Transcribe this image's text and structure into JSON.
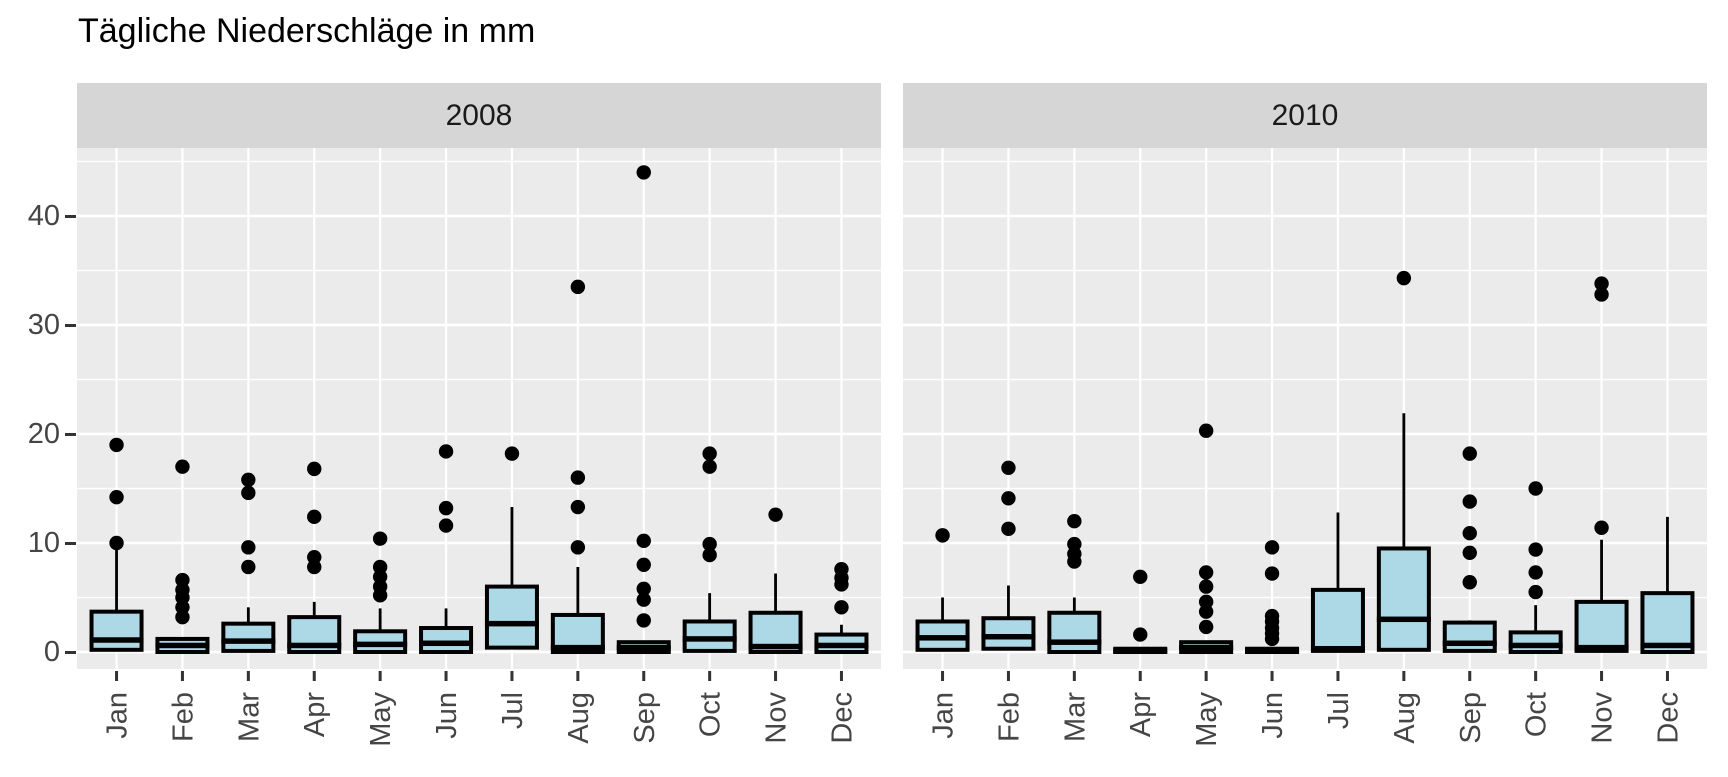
{
  "chart_data": {
    "type": "boxplot",
    "title": "Tägliche Niederschläge in mm",
    "units": "mm",
    "categories": [
      "Jan",
      "Feb",
      "Mar",
      "Apr",
      "May",
      "Jun",
      "Jul",
      "Aug",
      "Sep",
      "Oct",
      "Nov",
      "Dec"
    ],
    "yticks": [
      0,
      10,
      20,
      30,
      40
    ],
    "minor_gridline_step": 5,
    "ylim": [
      -1.6,
      46.3
    ],
    "grid": "on",
    "legend": "none",
    "facets": [
      {
        "label": "2008",
        "boxes": [
          {
            "month": "Jan",
            "q1": 0.2,
            "median": 1.1,
            "q3": 3.7,
            "whisker_high": 9.5,
            "outliers": [
              10.0,
              14.2,
              19.0
            ]
          },
          {
            "month": "Feb",
            "q1": 0.0,
            "median": 0.6,
            "q3": 1.2,
            "whisker_high": 1.2,
            "outliers": [
              3.2,
              4.1,
              5.0,
              5.7,
              6.6,
              17.0
            ]
          },
          {
            "month": "Mar",
            "q1": 0.1,
            "median": 1.0,
            "q3": 2.6,
            "whisker_high": 4.1,
            "outliers": [
              7.8,
              9.6,
              14.6,
              15.8
            ]
          },
          {
            "month": "Apr",
            "q1": 0.0,
            "median": 0.6,
            "q3": 3.2,
            "whisker_high": 4.6,
            "outliers": [
              7.8,
              8.7,
              12.4,
              16.8
            ]
          },
          {
            "month": "May",
            "q1": 0.0,
            "median": 0.7,
            "q3": 1.9,
            "whisker_high": 4.0,
            "outliers": [
              5.2,
              6.0,
              6.9,
              7.8,
              10.4
            ]
          },
          {
            "month": "Jun",
            "q1": 0.0,
            "median": 0.8,
            "q3": 2.2,
            "whisker_high": 4.0,
            "outliers": [
              11.6,
              13.2,
              18.4
            ]
          },
          {
            "month": "Jul",
            "q1": 0.4,
            "median": 2.6,
            "q3": 6.0,
            "whisker_high": 13.3,
            "outliers": [
              18.2
            ]
          },
          {
            "month": "Aug",
            "q1": 0.0,
            "median": 0.4,
            "q3": 3.4,
            "whisker_high": 7.8,
            "outliers": [
              9.6,
              13.3,
              16.0,
              33.5
            ]
          },
          {
            "month": "Sep",
            "q1": 0.0,
            "median": 0.4,
            "q3": 0.9,
            "whisker_high": 0.9,
            "outliers": [
              2.9,
              4.8,
              5.8,
              8.0,
              10.2,
              44.0
            ]
          },
          {
            "month": "Oct",
            "q1": 0.1,
            "median": 1.2,
            "q3": 2.8,
            "whisker_high": 5.4,
            "outliers": [
              8.9,
              9.9,
              17.0,
              18.2
            ]
          },
          {
            "month": "Nov",
            "q1": 0.0,
            "median": 0.5,
            "q3": 3.6,
            "whisker_high": 7.2,
            "outliers": [
              12.6
            ]
          },
          {
            "month": "Dec",
            "q1": 0.0,
            "median": 0.6,
            "q3": 1.6,
            "whisker_high": 2.5,
            "outliers": [
              4.1,
              6.2,
              6.8,
              7.6
            ]
          }
        ]
      },
      {
        "label": "2010",
        "boxes": [
          {
            "month": "Jan",
            "q1": 0.2,
            "median": 1.3,
            "q3": 2.8,
            "whisker_high": 5.0,
            "outliers": [
              10.7
            ]
          },
          {
            "month": "Feb",
            "q1": 0.3,
            "median": 1.4,
            "q3": 3.1,
            "whisker_high": 6.1,
            "outliers": [
              11.3,
              14.1,
              16.9
            ]
          },
          {
            "month": "Mar",
            "q1": 0.0,
            "median": 0.9,
            "q3": 3.6,
            "whisker_high": 5.0,
            "outliers": [
              8.3,
              9.0,
              9.9,
              12.0
            ]
          },
          {
            "month": "Apr",
            "q1": 0.0,
            "median": 0.1,
            "q3": 0.3,
            "whisker_high": 0.3,
            "outliers": [
              1.6,
              6.9
            ]
          },
          {
            "month": "May",
            "q1": 0.0,
            "median": 0.4,
            "q3": 0.9,
            "whisker_high": 0.9,
            "outliers": [
              2.3,
              3.7,
              4.6,
              6.0,
              7.3,
              20.3
            ]
          },
          {
            "month": "Jun",
            "q1": 0.0,
            "median": 0.1,
            "q3": 0.3,
            "whisker_high": 0.3,
            "outliers": [
              1.2,
              1.7,
              2.2,
              2.8,
              3.3,
              7.2,
              9.6
            ]
          },
          {
            "month": "Jul",
            "q1": 0.1,
            "median": 0.3,
            "q3": 5.7,
            "whisker_high": 12.8,
            "outliers": []
          },
          {
            "month": "Aug",
            "q1": 0.2,
            "median": 3.0,
            "q3": 9.5,
            "whisker_high": 21.9,
            "outliers": [
              34.3
            ]
          },
          {
            "month": "Sep",
            "q1": 0.1,
            "median": 0.8,
            "q3": 2.7,
            "whisker_high": 2.9,
            "outliers": [
              6.4,
              9.1,
              10.9,
              13.8,
              18.2
            ]
          },
          {
            "month": "Oct",
            "q1": 0.0,
            "median": 0.6,
            "q3": 1.8,
            "whisker_high": 4.3,
            "outliers": [
              5.5,
              7.3,
              9.4,
              15.0
            ]
          },
          {
            "month": "Nov",
            "q1": 0.1,
            "median": 0.4,
            "q3": 4.6,
            "whisker_high": 10.3,
            "outliers": [
              11.4,
              32.8,
              33.8
            ]
          },
          {
            "month": "Dec",
            "q1": 0.0,
            "median": 0.6,
            "q3": 5.4,
            "whisker_high": 12.4,
            "outliers": []
          }
        ]
      }
    ],
    "colors": {
      "box_fill": "#ADD8E6",
      "box_border": "#000000",
      "median": "#000000",
      "whisker": "#000000",
      "outlier": "#000000",
      "panel_bg": "#EBEBEB",
      "gridline": "#FFFFFF",
      "strip_bg": "#D6D6D6",
      "strip_text": "#1A1A1A",
      "axis_text": "#454545",
      "tick_mark": "#333333",
      "title_text": "#000000"
    }
  }
}
